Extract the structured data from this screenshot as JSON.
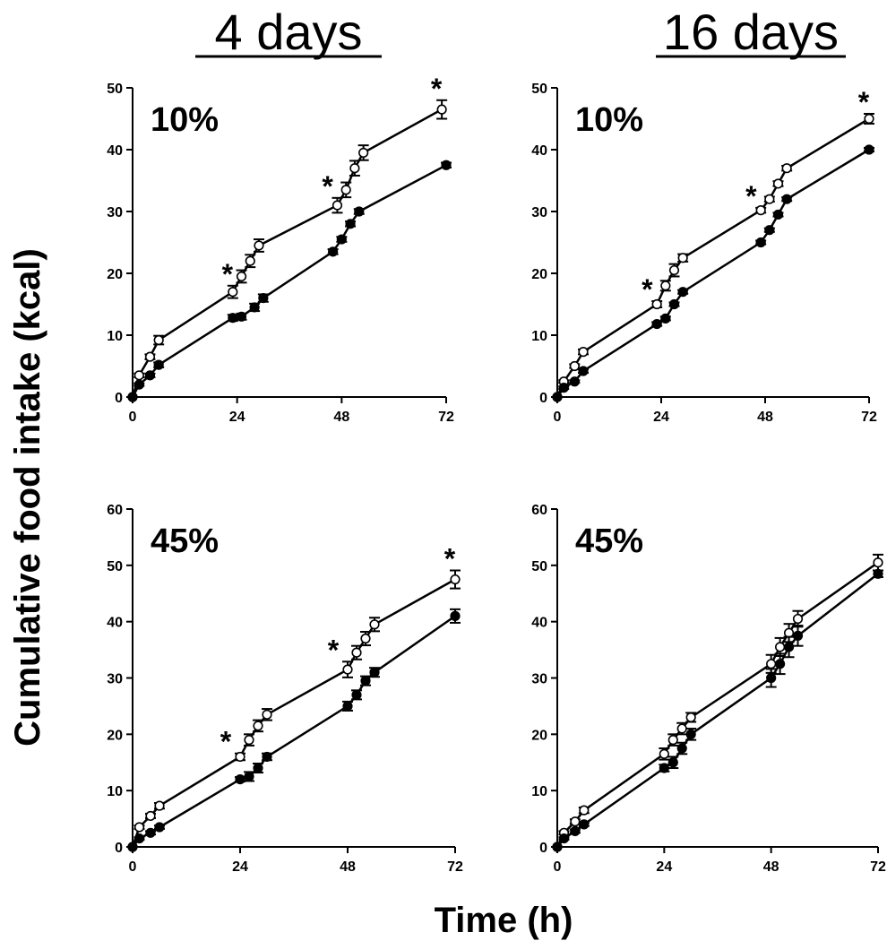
{
  "figure": {
    "column_titles": [
      "4 days",
      "16 days"
    ],
    "ylabel": "Cumulative food intake (kcal)",
    "xlabel": "Time (h)"
  },
  "chart_data": [
    {
      "type": "line",
      "panel_label": "10%",
      "column": "4 days",
      "xlim": [
        0,
        72
      ],
      "ylim": [
        0,
        50
      ],
      "xticks": [
        0,
        24,
        48,
        72
      ],
      "yticks": [
        0,
        10,
        20,
        30,
        40,
        50
      ],
      "series": [
        {
          "marker": "open",
          "x": [
            0,
            1.5,
            4,
            6,
            23,
            25,
            27,
            29,
            47,
            49,
            51,
            53,
            71
          ],
          "y": [
            0,
            3.5,
            6.5,
            9.2,
            17,
            19.5,
            22,
            24.5,
            31,
            33.5,
            37,
            39.5,
            46.5
          ],
          "err": [
            0,
            0.3,
            0.4,
            0.7,
            1,
            1,
            1,
            1,
            1.2,
            1.2,
            1.2,
            1.2,
            1.5
          ]
        },
        {
          "marker": "filled",
          "x": [
            0,
            1.5,
            4,
            6,
            23,
            25,
            28,
            30,
            46,
            48,
            50,
            52,
            72
          ],
          "y": [
            0,
            2,
            3.5,
            5.2,
            12.8,
            13,
            14.5,
            16,
            23.5,
            25.5,
            28,
            30,
            37.5
          ],
          "err": [
            0,
            0.2,
            0.3,
            0.4,
            0.5,
            0.5,
            0.6,
            0.6,
            0.4,
            0.4,
            0.4,
            0.4,
            0.4
          ]
        }
      ],
      "significance": [
        {
          "x": 23,
          "label": "*"
        },
        {
          "x": 46,
          "label": "*"
        },
        {
          "x": 71,
          "label": "*"
        }
      ]
    },
    {
      "type": "line",
      "panel_label": "10%",
      "column": "16 days",
      "xlim": [
        0,
        72
      ],
      "ylim": [
        0,
        50
      ],
      "xticks": [
        0,
        24,
        48,
        72
      ],
      "yticks": [
        0,
        10,
        20,
        30,
        40,
        50
      ],
      "series": [
        {
          "marker": "open",
          "x": [
            0,
            1.5,
            4,
            6,
            23,
            25,
            27,
            29,
            47,
            49,
            51,
            53,
            72
          ],
          "y": [
            0,
            2.5,
            5,
            7.3,
            15,
            18,
            20.5,
            22.5,
            30.2,
            32,
            34.5,
            37,
            45
          ],
          "err": [
            0,
            0.2,
            0.3,
            0.4,
            0.5,
            0.8,
            1,
            0.6,
            0.4,
            0.4,
            0.4,
            0.4,
            0.8
          ]
        },
        {
          "marker": "filled",
          "x": [
            0,
            1.5,
            4,
            6,
            23,
            25,
            27,
            29,
            47,
            49,
            51,
            53,
            72
          ],
          "y": [
            0,
            1.5,
            2.5,
            4.2,
            11.8,
            12.7,
            15,
            17,
            25,
            27,
            29.5,
            32,
            40
          ],
          "err": [
            0,
            0.2,
            0.2,
            0.3,
            0.3,
            0.3,
            0.3,
            0.3,
            0.3,
            0.3,
            0.3,
            0.3,
            0.3
          ]
        }
      ],
      "significance": [
        {
          "x": 22,
          "label": "*"
        },
        {
          "x": 46,
          "label": "*"
        },
        {
          "x": 72,
          "label": "*"
        }
      ]
    },
    {
      "type": "line",
      "panel_label": "45%",
      "column": "4 days",
      "xlim": [
        0,
        72
      ],
      "ylim": [
        0,
        60
      ],
      "xticks": [
        0,
        24,
        48,
        72
      ],
      "yticks": [
        0,
        10,
        20,
        30,
        40,
        50,
        60
      ],
      "series": [
        {
          "marker": "open",
          "x": [
            0,
            1.5,
            4,
            6,
            24,
            26,
            28,
            30,
            48,
            50,
            52,
            54,
            72
          ],
          "y": [
            0,
            3.5,
            5.5,
            7.3,
            16,
            19,
            21.5,
            23.5,
            31.5,
            34.5,
            37,
            39.5,
            47.5
          ],
          "err": [
            0,
            0.3,
            0.4,
            0.5,
            0.6,
            1,
            1,
            1,
            1.4,
            1.2,
            1.2,
            1.2,
            1.6
          ]
        },
        {
          "marker": "filled",
          "x": [
            0,
            1.5,
            4,
            6,
            24,
            26,
            28,
            30,
            48,
            50,
            52,
            54,
            72
          ],
          "y": [
            0,
            1.5,
            2.5,
            3.5,
            12,
            12.5,
            14,
            16,
            25,
            27,
            29.5,
            31,
            41
          ],
          "err": [
            0,
            0.2,
            0.3,
            0.3,
            0.4,
            0.8,
            0.8,
            0.6,
            0.8,
            0.8,
            0.8,
            0.8,
            1.2
          ]
        }
      ],
      "significance": [
        {
          "x": 22,
          "label": "*"
        },
        {
          "x": 46,
          "label": "*"
        },
        {
          "x": 72,
          "label": "*"
        }
      ]
    },
    {
      "type": "line",
      "panel_label": "45%",
      "column": "16 days",
      "xlim": [
        0,
        72
      ],
      "ylim": [
        0,
        60
      ],
      "xticks": [
        0,
        24,
        48,
        72
      ],
      "yticks": [
        0,
        10,
        20,
        30,
        40,
        50,
        60
      ],
      "series": [
        {
          "marker": "open",
          "x": [
            0,
            1.5,
            4,
            6,
            24,
            26,
            28,
            30,
            48,
            50,
            52,
            54,
            72
          ],
          "y": [
            0,
            2.5,
            4.5,
            6.5,
            16.5,
            19,
            21,
            23,
            32.5,
            35.5,
            38,
            40.5,
            50.5
          ],
          "err": [
            0,
            0.3,
            0.4,
            0.5,
            1,
            1,
            1,
            0.8,
            1.6,
            1.6,
            1.6,
            1.4,
            1.4
          ]
        },
        {
          "marker": "filled",
          "x": [
            0,
            1.5,
            4,
            6,
            24,
            26,
            28,
            30,
            48,
            50,
            52,
            54,
            72
          ],
          "y": [
            0,
            1.5,
            2.8,
            4,
            14,
            15,
            17.5,
            20,
            30,
            32.5,
            35.5,
            37.5,
            48.5
          ],
          "err": [
            0,
            0.2,
            0.3,
            0.3,
            0.6,
            1,
            1,
            1,
            1.6,
            1.8,
            1.8,
            1.8,
            0.6
          ]
        }
      ],
      "significance": []
    }
  ]
}
